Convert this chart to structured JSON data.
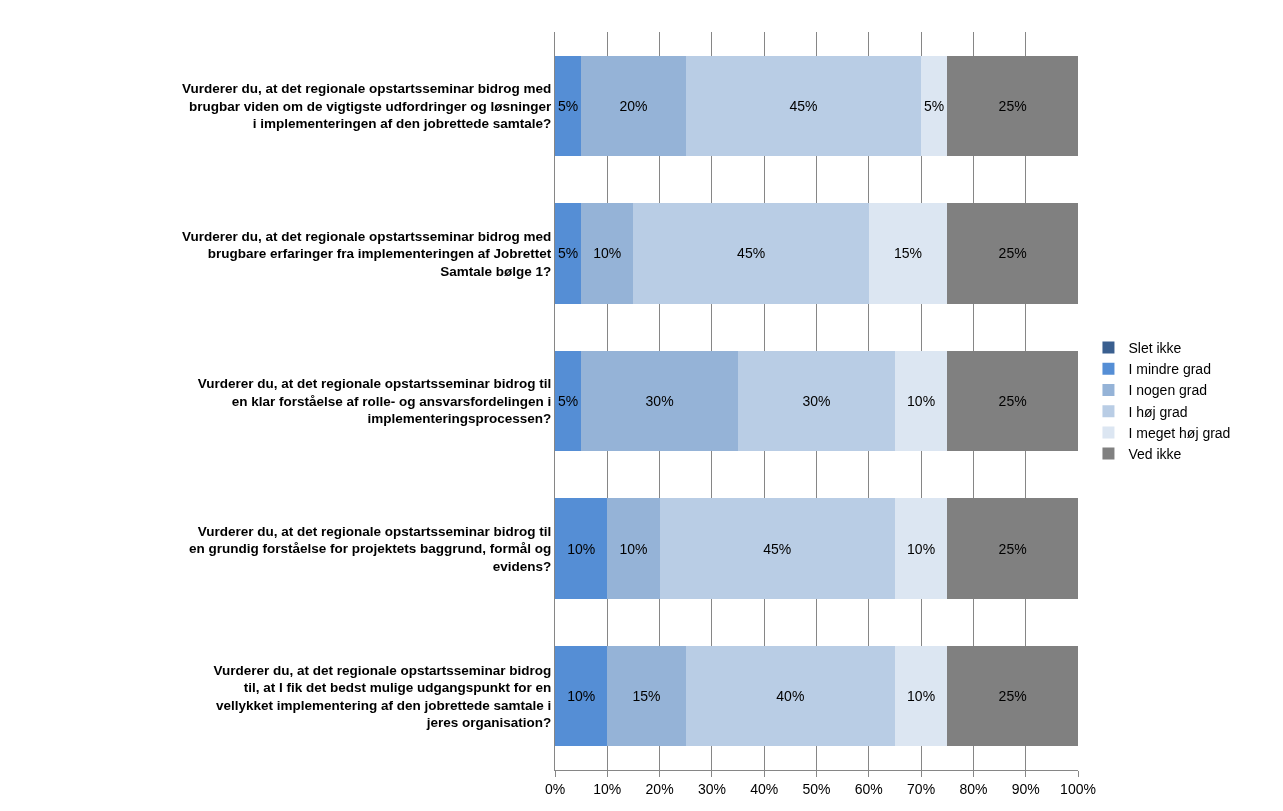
{
  "chart_data": {
    "type": "bar",
    "orientation": "horizontal",
    "stacked": true,
    "categories": [
      "Vurderer du, at det regionale opstartsseminar bidrog med brugbar viden om de vigtigste udfordringer og løsninger i implementeringen af den jobrettede samtale?",
      "Vurderer du, at det regionale opstartsseminar bidrog med brugbare erfaringer fra implementeringen af Jobrettet Samtale bølge 1?",
      "Vurderer du, at det regionale opstartsseminar bidrog til en klar forståelse af rolle- og ansvarsfordelingen i implementeringsprocessen?",
      "Vurderer du, at det regionale opstartsseminar bidrog til en grundig forståelse for projektets baggrund, formål og evidens?",
      "Vurderer du, at det regionale opstartsseminar bidrog til, at I fik det bedst mulige udgangspunkt for en vellykket implementering af den jobrettede samtale i jeres organisation?"
    ],
    "series": [
      {
        "name": "Slet ikke",
        "color": "#3a5f8f",
        "values": [
          0,
          0,
          0,
          0,
          0
        ],
        "value_labels": [
          null,
          null,
          null,
          null,
          null
        ]
      },
      {
        "name": "I mindre grad",
        "color": "#558ed5",
        "values": [
          5,
          5,
          5,
          10,
          10
        ],
        "value_labels": [
          "5%",
          "5%",
          "5%",
          "10%",
          "10%"
        ]
      },
      {
        "name": "I nogen grad",
        "color": "#95b3d7",
        "values": [
          20,
          10,
          30,
          10,
          15
        ],
        "value_labels": [
          "20%",
          "10%",
          "30%",
          "10%",
          "15%"
        ]
      },
      {
        "name": "I høj grad",
        "color": "#b9cde5",
        "values": [
          45,
          45,
          30,
          45,
          40
        ],
        "value_labels": [
          "45%",
          "45%",
          "30%",
          "45%",
          "40%"
        ]
      },
      {
        "name": "I meget høj grad",
        "color": "#dce6f2",
        "values": [
          5,
          15,
          10,
          10,
          10
        ],
        "value_labels": [
          "5%",
          "15%",
          "10%",
          "10%",
          "10%"
        ]
      },
      {
        "name": "Ved ikke",
        "color": "#808080",
        "values": [
          25,
          25,
          25,
          25,
          25
        ],
        "value_labels": [
          "25%",
          "25%",
          "25%",
          "25%",
          "25%"
        ]
      }
    ],
    "xlim": [
      0,
      100
    ],
    "xticks": [
      {
        "value": 0,
        "label": "0%"
      },
      {
        "value": 10,
        "label": "10%"
      },
      {
        "value": 20,
        "label": "20%"
      },
      {
        "value": 30,
        "label": "30%"
      },
      {
        "value": 40,
        "label": "40%"
      },
      {
        "value": 50,
        "label": "50%"
      },
      {
        "value": 60,
        "label": "60%"
      },
      {
        "value": 70,
        "label": "70%"
      },
      {
        "value": 80,
        "label": "80%"
      },
      {
        "value": 90,
        "label": "90%"
      },
      {
        "value": 100,
        "label": "100%"
      }
    ],
    "grid": "x",
    "legend": "right"
  }
}
